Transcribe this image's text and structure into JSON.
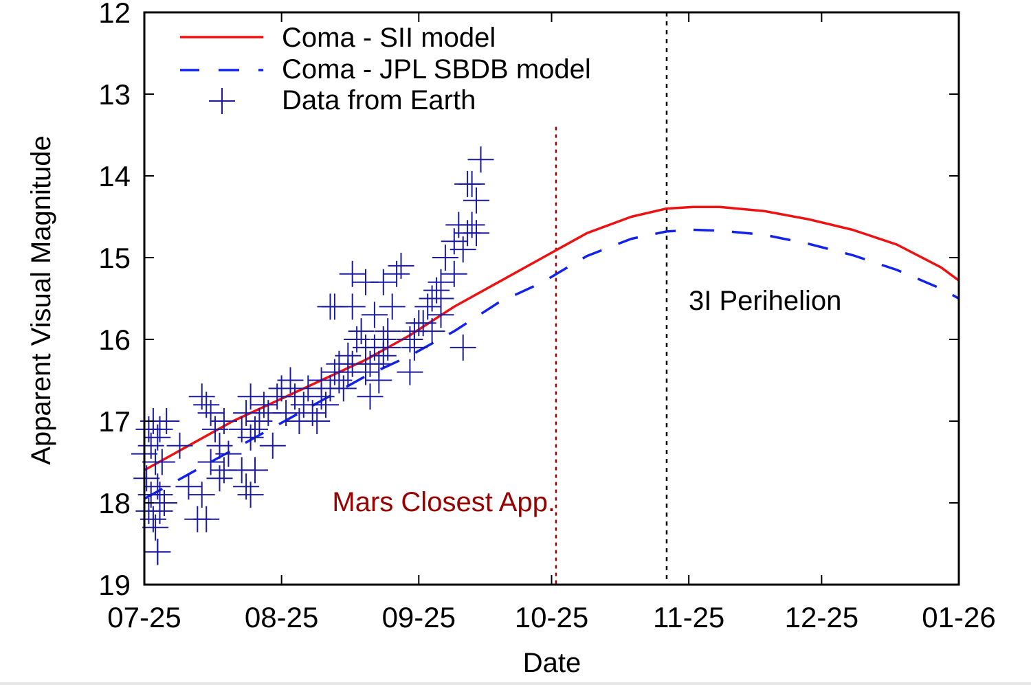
{
  "chart_data": {
    "type": "line",
    "title": "",
    "xlabel": "Date",
    "ylabel": "Apparent Visual Magnitude",
    "x_tick_labels": [
      "07-25",
      "08-25",
      "09-25",
      "10-25",
      "11-25",
      "12-25",
      "01-26"
    ],
    "x_unit": "days since 2025-07-25",
    "x_tick_values": [
      0,
      31,
      62,
      92,
      123,
      153,
      184
    ],
    "xlim": [
      0,
      184
    ],
    "y_ticks": [
      12,
      13,
      14,
      15,
      16,
      17,
      18,
      19
    ],
    "ylim": [
      12,
      19
    ],
    "y_inverted": true,
    "grid": false,
    "legend": {
      "position": "top-left",
      "entries": [
        "Coma - SII model",
        "Coma - JPL SBDB model",
        "Data from Earth"
      ]
    },
    "colors": {
      "sii": "#ee1111",
      "jpl": "#1122ee",
      "data": "#1a1aa0",
      "mars": "#990000",
      "perihelion": "#000000"
    },
    "series": [
      {
        "name": "Coma - SII model",
        "style": "solid",
        "x": [
          0,
          10,
          20,
          30,
          40,
          50,
          60,
          70,
          80,
          90,
          94,
          100,
          110,
          118,
          124,
          130,
          140,
          150,
          160,
          170,
          180,
          184
        ],
        "y": [
          17.6,
          17.3,
          17.0,
          16.75,
          16.5,
          16.25,
          15.95,
          15.6,
          15.3,
          15.0,
          14.88,
          14.7,
          14.5,
          14.4,
          14.38,
          14.38,
          14.43,
          14.53,
          14.66,
          14.84,
          15.12,
          15.28
        ]
      },
      {
        "name": "Coma - JPL SBDB model",
        "style": "dashed",
        "x": [
          0,
          10,
          20,
          30,
          40,
          50,
          60,
          70,
          80,
          90,
          94,
          100,
          110,
          118,
          124,
          130,
          140,
          150,
          160,
          170,
          180,
          184
        ],
        "y": [
          17.95,
          17.65,
          17.35,
          17.05,
          16.75,
          16.45,
          16.2,
          15.9,
          15.55,
          15.3,
          15.17,
          14.98,
          14.77,
          14.68,
          14.66,
          14.67,
          14.72,
          14.83,
          14.97,
          15.15,
          15.38,
          15.5
        ]
      },
      {
        "name": "Data from Earth",
        "style": "marker-plus",
        "x": [
          0,
          0.5,
          1,
          1,
          1.5,
          1.5,
          2,
          2,
          2.5,
          2.5,
          3,
          3,
          3,
          3.5,
          3.5,
          4,
          4.5,
          5,
          3,
          3.5,
          8,
          10,
          12,
          13,
          13,
          14,
          14,
          15,
          15,
          16,
          17,
          17,
          18,
          18,
          19,
          22,
          22,
          23,
          23,
          24,
          24,
          24,
          25,
          25,
          26,
          27,
          28,
          29,
          30,
          31,
          32,
          33,
          34,
          35,
          36,
          37,
          38,
          39,
          40,
          40,
          41,
          42,
          43,
          43,
          44,
          44,
          45,
          46,
          46,
          47,
          47,
          48,
          49,
          50,
          50,
          50,
          51,
          51,
          52,
          52,
          53,
          53,
          54,
          54,
          54,
          55,
          55,
          56,
          57,
          58,
          60,
          60,
          61,
          61,
          62,
          63,
          64,
          65,
          65,
          66,
          67,
          67,
          67,
          68,
          70,
          70,
          71,
          72,
          72,
          73,
          73,
          74,
          74,
          75,
          75,
          76,
          47,
          42
        ],
        "y": [
          17.4,
          17.7,
          17.1,
          18.1,
          17.3,
          17.9,
          17.0,
          18.2,
          17.5,
          18.3,
          17.2,
          17.8,
          18.6,
          17.1,
          18.1,
          17.5,
          18.0,
          17.0,
          18.6,
          17.9,
          17.3,
          17.8,
          18.2,
          16.7,
          17.9,
          16.8,
          18.2,
          16.9,
          17.5,
          17.1,
          17.3,
          17.7,
          17.6,
          17.0,
          17.4,
          17.1,
          17.6,
          16.9,
          17.8,
          16.7,
          17.2,
          17.9,
          17.1,
          17.6,
          17.0,
          16.8,
          16.9,
          17.3,
          16.7,
          16.6,
          16.9,
          16.5,
          16.7,
          17.0,
          16.8,
          16.6,
          16.9,
          17.0,
          16.7,
          16.5,
          16.8,
          16.6,
          16.4,
          15.6,
          16.5,
          16.3,
          16.6,
          16.2,
          16.4,
          15.6,
          16.3,
          16.0,
          15.9,
          15.3,
          16.4,
          16.1,
          16.7,
          16.3,
          15.7,
          16.1,
          16.3,
          16.5,
          15.3,
          16.0,
          16.2,
          15.9,
          16.1,
          15.6,
          15.2,
          15.1,
          16.0,
          16.4,
          15.9,
          16.1,
          15.8,
          15.8,
          15.6,
          15.9,
          15.5,
          15.4,
          15.7,
          15.3,
          15.5,
          15.0,
          14.8,
          15.2,
          14.6,
          14.9,
          16.1,
          14.1,
          14.7,
          14.6,
          14.1,
          14.3,
          14.7,
          13.8,
          15.2,
          15.6
        ]
      }
    ],
    "annotations": [
      {
        "text": "Mars Closest App.",
        "x": 93,
        "color": "#990000",
        "line_style": "dotted"
      },
      {
        "text": "3I Perihelion",
        "x": 118,
        "color": "#000000",
        "line_style": "dashed"
      }
    ]
  }
}
